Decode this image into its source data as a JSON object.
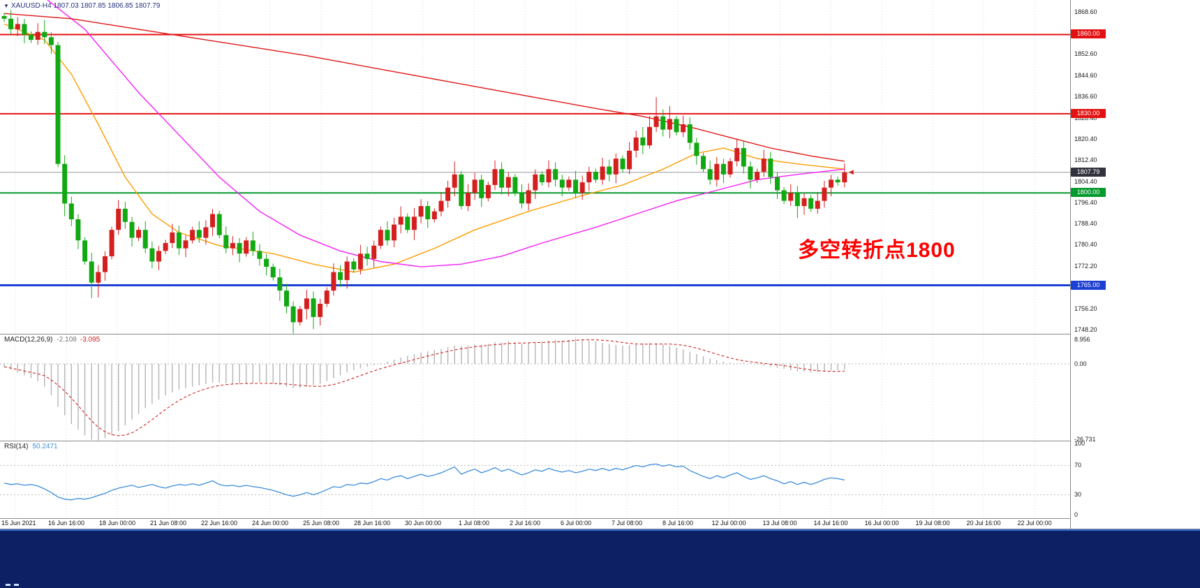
{
  "title_bar": {
    "marker": "▼",
    "symbol": "XAUUSD-H4",
    "ohlc": "1807.03 1807.85 1806.85 1807.79"
  },
  "colors": {
    "bull": "#d51f1f",
    "bear": "#12a812",
    "grid": "#d9d9d9",
    "macd_hist": "#b4b4b4",
    "macd_signal": "#d22222",
    "rsi_line": "#3c8ddc",
    "level_red": "#e31212",
    "level_green": "#069a2e",
    "level_blue": "#1c3fd4",
    "price_badge": "#32323f",
    "annotation": "#fe0000",
    "bottom_bar": "#0c2063"
  },
  "chart_data": {
    "type": "candlestick",
    "symbol": "XAUUSD",
    "timeframe": "H4",
    "ohlc_display": {
      "open": "1807.03",
      "high": "1807.85",
      "low": "1806.85",
      "close": "1807.79"
    },
    "current_price": 1807.79,
    "current_price_label": "1807.79",
    "annotation": {
      "text": "多空转折点1800"
    },
    "price_axis_ticks": [
      "1868.60",
      "1860.60",
      "1852.60",
      "1844.60",
      "1836.60",
      "1828.40",
      "1820.40",
      "1812.40",
      "1804.40",
      "1796.40",
      "1788.40",
      "1780.40",
      "1772.20",
      "1764.20",
      "1756.20",
      "1748.20"
    ],
    "price_axis_range": {
      "top_price": 1868.6,
      "bottom_price": 1748.2
    },
    "levels": [
      {
        "price": 1860.0,
        "label": "1860.00",
        "color": "#e31212",
        "width": 2
      },
      {
        "price": 1830.0,
        "label": "1830.00",
        "color": "#e31212",
        "width": 2
      },
      {
        "price": 1800.0,
        "label": "1800.00",
        "color": "#069a2e",
        "width": 2
      },
      {
        "price": 1765.0,
        "label": "1765.00",
        "color": "#1c3fd4",
        "width": 3
      }
    ],
    "x_labels": [
      "15 Jun 2021",
      "16 Jun 16:00",
      "18 Jun 00:00",
      "21 Jun 08:00",
      "22 Jun 16:00",
      "24 Jun 00:00",
      "25 Jun 08:00",
      "28 Jun 16:00",
      "30 Jun 00:00",
      "1 Jul 08:00",
      "2 Jul 16:00",
      "6 Jul 00:00",
      "7 Jul 08:00",
      "8 Jul 16:00",
      "12 Jul 00:00",
      "13 Jul 08:00",
      "14 Jul 16:00",
      "16 Jul 00:00",
      "19 Jul 08:00",
      "20 Jul 16:00",
      "22 Jul 00:00"
    ],
    "candles": {
      "first_open": 1867,
      "closes": [
        1866,
        1862,
        1864,
        1860,
        1858,
        1861,
        1859,
        1856,
        1811,
        1796,
        1790,
        1782,
        1774,
        1766,
        1770,
        1776,
        1786,
        1794,
        1789,
        1783,
        1786,
        1779,
        1774,
        1778,
        1781,
        1785,
        1779,
        1782,
        1786,
        1783,
        1787,
        1792,
        1784,
        1779,
        1781,
        1777,
        1782,
        1778,
        1775,
        1772,
        1768,
        1763,
        1757,
        1751,
        1756,
        1760,
        1753,
        1758,
        1763,
        1770,
        1767,
        1774,
        1771,
        1777,
        1775,
        1780,
        1786,
        1782,
        1788,
        1791,
        1786,
        1791,
        1795,
        1790,
        1793,
        1797,
        1802,
        1807,
        1795,
        1800,
        1805,
        1798,
        1803,
        1809,
        1802,
        1806,
        1800,
        1796,
        1801,
        1807,
        1804,
        1809,
        1805,
        1802,
        1805,
        1800,
        1804,
        1808,
        1805,
        1810,
        1807,
        1813,
        1809,
        1816,
        1821,
        1818,
        1825,
        1829,
        1824,
        1828,
        1823,
        1826,
        1819,
        1814,
        1809,
        1805,
        1811,
        1807,
        1812,
        1817,
        1810,
        1805,
        1808,
        1813,
        1806,
        1801,
        1797,
        1800,
        1795,
        1798,
        1794,
        1797,
        1802,
        1805,
        1804,
        1807.79
      ],
      "wick_hi_extra": {
        "6": 2,
        "59": 2,
        "67": 3,
        "95": 2,
        "96": 3,
        "97": 4,
        "99": 3
      },
      "wick_lo_extra": {
        "9": 3,
        "13": 4,
        "14": 3,
        "41": 2,
        "43": 1,
        "45": 2,
        "46": 2,
        "61": 2,
        "118": 2
      }
    },
    "moving_averages": [
      {
        "name": "ma-fast-orange",
        "color": "#ff9c00",
        "points": [
          [
            0,
            1864
          ],
          [
            6,
            1858
          ],
          [
            10,
            1845
          ],
          [
            14,
            1826
          ],
          [
            18,
            1806
          ],
          [
            22,
            1792
          ],
          [
            26,
            1785
          ],
          [
            32,
            1780
          ],
          [
            40,
            1777
          ],
          [
            46,
            1773
          ],
          [
            52,
            1770
          ],
          [
            58,
            1773
          ],
          [
            64,
            1779
          ],
          [
            70,
            1786
          ],
          [
            78,
            1793
          ],
          [
            86,
            1799
          ],
          [
            92,
            1803
          ],
          [
            98,
            1809
          ],
          [
            103,
            1815
          ],
          [
            107,
            1817
          ],
          [
            112,
            1813
          ],
          [
            118,
            1811
          ],
          [
            125,
            1809
          ]
        ]
      },
      {
        "name": "ma-mid-magenta",
        "color": "#f520f5",
        "points": [
          [
            5,
            1876
          ],
          [
            8,
            1870
          ],
          [
            12,
            1862
          ],
          [
            16,
            1850
          ],
          [
            20,
            1838
          ],
          [
            26,
            1822
          ],
          [
            32,
            1806
          ],
          [
            38,
            1793
          ],
          [
            44,
            1784
          ],
          [
            50,
            1778
          ],
          [
            56,
            1774
          ],
          [
            62,
            1772
          ],
          [
            68,
            1773
          ],
          [
            74,
            1776
          ],
          [
            80,
            1781
          ],
          [
            88,
            1787
          ],
          [
            94,
            1792
          ],
          [
            100,
            1797
          ],
          [
            106,
            1801
          ],
          [
            112,
            1805
          ],
          [
            118,
            1807
          ],
          [
            125,
            1809
          ]
        ]
      },
      {
        "name": "ma-slow-red",
        "color": "#e01515",
        "points": [
          [
            0,
            1868
          ],
          [
            10,
            1866
          ],
          [
            20,
            1862
          ],
          [
            30,
            1858
          ],
          [
            45,
            1852
          ],
          [
            60,
            1845
          ],
          [
            75,
            1838
          ],
          [
            88,
            1832
          ],
          [
            95,
            1829
          ],
          [
            102,
            1825
          ],
          [
            108,
            1821
          ],
          [
            114,
            1817
          ],
          [
            120,
            1814
          ],
          [
            125,
            1812
          ]
        ]
      }
    ],
    "macd": {
      "name": "MACD(12,26,9)",
      "main_text": "-2.108",
      "signal_text": "-3.095",
      "axis_ticks": [
        "8.956",
        "0.00",
        "-26.731"
      ],
      "histogram": [
        -1,
        -2,
        -3,
        -4,
        -5,
        -6,
        -8,
        -11,
        -15,
        -18,
        -21,
        -23,
        -25,
        -26.5,
        -26.7,
        -26,
        -25,
        -23.5,
        -21.5,
        -19.5,
        -17.5,
        -15.5,
        -14,
        -12.5,
        -11,
        -10,
        -9,
        -8.5,
        -8,
        -7.5,
        -7,
        -6.5,
        -6.5,
        -6.8,
        -7,
        -7.2,
        -7,
        -6.8,
        -6.5,
        -6.5,
        -7,
        -7.5,
        -8,
        -8.5,
        -8.5,
        -8,
        -7.5,
        -7,
        -6,
        -5,
        -4,
        -3,
        -2.2,
        -1.5,
        -1,
        -0.5,
        0.2,
        0.8,
        1.5,
        2.2,
        2.8,
        3.4,
        4,
        4.4,
        4.8,
        5.2,
        5.8,
        6.4,
        6.2,
        6.4,
        6.8,
        6.6,
        7,
        7.6,
        7.4,
        7.8,
        7.4,
        7,
        7.2,
        7.6,
        7.8,
        8.2,
        8.4,
        8.2,
        8.4,
        8.9,
        8.6,
        8.2,
        7.8,
        7.4,
        7,
        6.6,
        6.4,
        6.6,
        6.9,
        7.2,
        7.4,
        7.2,
        6.8,
        6.2,
        5.6,
        5,
        4.2,
        3.4,
        2.6,
        1.8,
        1.2,
        0.8,
        0.4,
        0.2,
        0.4,
        0.2,
        -0.2,
        -0.6,
        -1,
        -1.4,
        -1.8,
        -2.2,
        -2.6,
        -2.8,
        -3,
        -2.8,
        -2.6,
        -2.4,
        -2.2,
        -2.108
      ]
    },
    "rsi": {
      "name": "RSI(14)",
      "value_text": "50.2471",
      "axis_ticks": [
        "100",
        "70",
        "30",
        "0"
      ],
      "levels": [
        70,
        30
      ],
      "values": [
        46,
        44,
        45,
        43,
        44,
        42,
        38,
        33,
        27,
        24,
        23,
        25,
        24,
        26,
        29,
        32,
        36,
        39,
        41,
        43,
        40,
        42,
        44,
        41,
        39,
        42,
        44,
        43,
        45,
        43,
        46,
        49,
        44,
        42,
        43,
        41,
        43,
        41,
        40,
        38,
        36,
        33,
        30,
        28,
        30,
        33,
        30,
        33,
        37,
        41,
        40,
        44,
        43,
        46,
        45,
        48,
        52,
        50,
        54,
        56,
        52,
        55,
        58,
        55,
        57,
        60,
        64,
        68,
        58,
        62,
        65,
        60,
        63,
        67,
        62,
        65,
        61,
        57,
        60,
        64,
        62,
        66,
        63,
        61,
        63,
        60,
        62,
        65,
        63,
        66,
        63,
        66,
        64,
        67,
        70,
        68,
        71,
        72,
        69,
        71,
        68,
        69,
        63,
        59,
        55,
        52,
        56,
        53,
        57,
        60,
        55,
        51,
        53,
        56,
        52,
        49,
        45,
        48,
        44,
        47,
        44,
        47,
        51,
        53,
        52,
        50.2
      ]
    }
  }
}
